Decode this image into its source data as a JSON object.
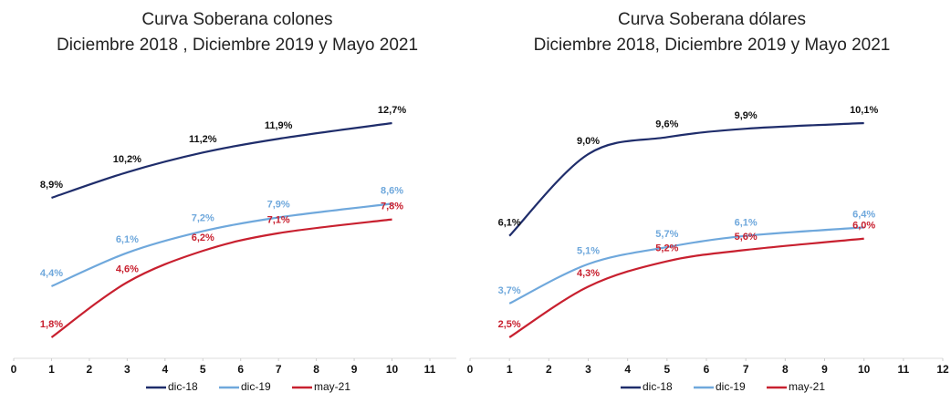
{
  "chart_data": [
    {
      "type": "line",
      "title": "Curva Soberana colones",
      "subtitle": "Diciembre 2018 , Diciembre 2019 y Mayo 2021",
      "x": [
        1,
        3,
        5,
        7,
        10
      ],
      "xlim": [
        0,
        11.7
      ],
      "xticks": [
        0,
        1,
        2,
        3,
        4,
        5,
        6,
        7,
        8,
        9,
        10,
        11
      ],
      "series": [
        {
          "name": "dic-18",
          "color": "#1f2d6b",
          "values": [
            8.9,
            10.2,
            11.2,
            11.9,
            12.7
          ],
          "value_labels": [
            "8,9%",
            "10,2%",
            "11,2%",
            "11,9%",
            "12,7%"
          ]
        },
        {
          "name": "dic-19",
          "color": "#6fa8dc",
          "values": [
            4.4,
            6.1,
            7.2,
            7.9,
            8.6
          ],
          "value_labels": [
            "4,4%",
            "6,1%",
            "7,2%",
            "7,9%",
            "8,6%"
          ]
        },
        {
          "name": "may-21",
          "color": "#c8202f",
          "values": [
            1.8,
            4.6,
            6.2,
            7.1,
            7.8
          ],
          "value_labels": [
            "1,8%",
            "4,6%",
            "6,2%",
            "7,1%",
            "7,8%"
          ]
        }
      ]
    },
    {
      "type": "line",
      "title": "Curva Soberana dólares",
      "subtitle": "Diciembre 2018, Diciembre 2019 y Mayo 2021",
      "x": [
        1,
        3,
        5,
        7,
        10
      ],
      "xlim": [
        0,
        12
      ],
      "xticks": [
        0,
        1,
        2,
        3,
        4,
        5,
        6,
        7,
        8,
        9,
        10,
        11,
        12
      ],
      "series": [
        {
          "name": "dic-18",
          "color": "#1f2d6b",
          "values": [
            6.1,
            9.0,
            9.6,
            9.9,
            10.1
          ],
          "value_labels": [
            "6,1%",
            "9,0%",
            "9,6%",
            "9,9%",
            "10,1%"
          ]
        },
        {
          "name": "dic-19",
          "color": "#6fa8dc",
          "values": [
            3.7,
            5.1,
            5.7,
            6.1,
            6.4
          ],
          "value_labels": [
            "3,7%",
            "5,1%",
            "5,7%",
            "6,1%",
            "6,4%"
          ]
        },
        {
          "name": "may-21",
          "color": "#c8202f",
          "values": [
            2.5,
            4.3,
            5.2,
            5.6,
            6.0
          ],
          "value_labels": [
            "2,5%",
            "4,3%",
            "5,2%",
            "5,6%",
            "6,0%"
          ]
        }
      ]
    }
  ]
}
